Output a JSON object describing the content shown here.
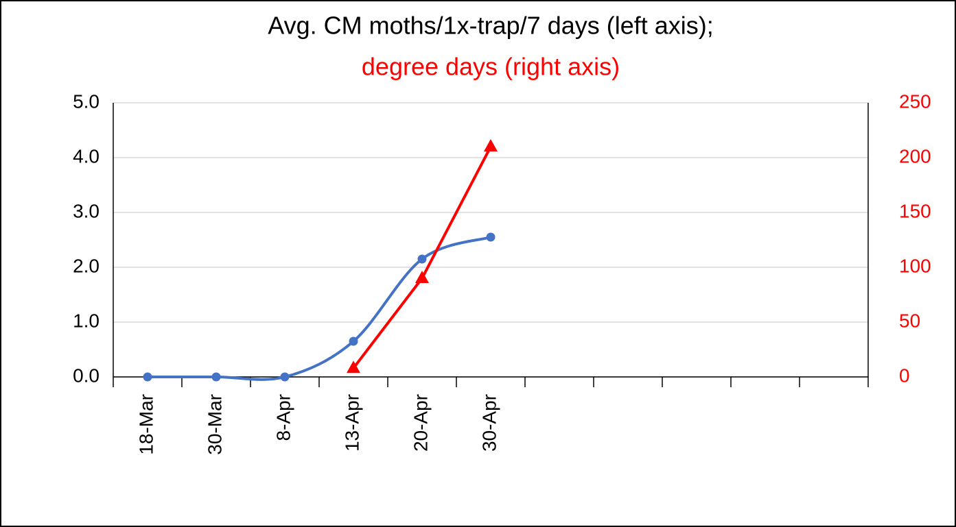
{
  "chart_data": {
    "type": "line",
    "title": "Avg. CM moths/1x-trap/7 days (left axis);",
    "subtitle": "degree days (right axis)",
    "categories": [
      "18-Mar",
      "30-Mar",
      "8-Apr",
      "13-Apr",
      "20-Apr",
      "30-Apr",
      null,
      null,
      null,
      null,
      null
    ],
    "series": [
      {
        "name": "Avg. CM moths/1x-trap/7 days",
        "color": "#4472c4",
        "marker": "circle",
        "smooth": true,
        "values": [
          0,
          0,
          0,
          0.65,
          2.15,
          2.55,
          null,
          null,
          null,
          null,
          null
        ]
      },
      {
        "name": "degree days",
        "color": "#ff0000",
        "marker": "triangle",
        "axis": "y2",
        "values": [
          null,
          null,
          null,
          8,
          90,
          210,
          null,
          null,
          null,
          null,
          null
        ]
      }
    ],
    "ylim": [
      0,
      5
    ],
    "yticks": [
      {
        "value": 0,
        "label": "0.0"
      },
      {
        "value": 1,
        "label": "1.0"
      },
      {
        "value": 2,
        "label": "2.0"
      },
      {
        "value": 3,
        "label": "3.0"
      },
      {
        "value": 4,
        "label": "4.0"
      },
      {
        "value": 5,
        "label": "5.0"
      }
    ],
    "y2lim": [
      0,
      250
    ],
    "y2ticks": [
      0,
      50,
      100,
      150,
      200,
      250
    ],
    "y2color": "#ff0000",
    "grid": true
  }
}
